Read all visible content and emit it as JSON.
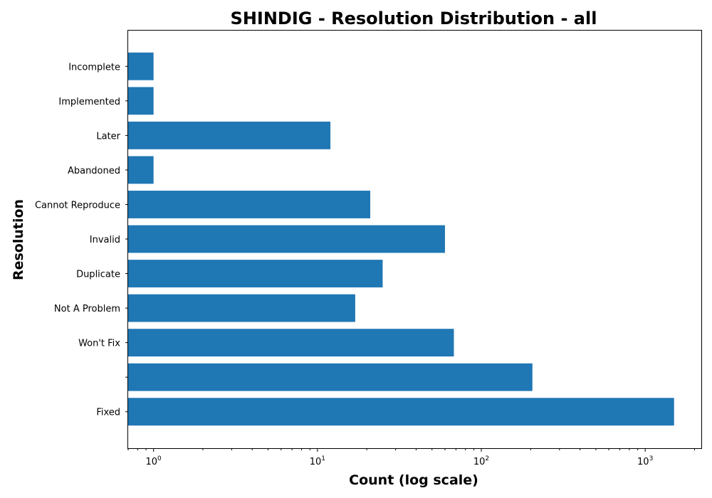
{
  "chart_data": {
    "type": "bar",
    "orientation": "horizontal",
    "title": "SHINDIG - Resolution Distribution - all",
    "xlabel": "Count (log scale)",
    "ylabel": "Resolution",
    "xscale": "log",
    "xlim": [
      0.7,
      2200
    ],
    "categories": [
      "Fixed",
      "",
      "Won't Fix",
      "Not A Problem",
      "Duplicate",
      "Invalid",
      "Cannot Reproduce",
      "Abandoned",
      "Later",
      "Implemented",
      "Incomplete"
    ],
    "values": [
      1500,
      205,
      68,
      17,
      25,
      60,
      21,
      1,
      12,
      1,
      1
    ],
    "bar_color": "#1f77b4",
    "x_ticks": [
      {
        "value": 1,
        "base": "10",
        "exp": "0"
      },
      {
        "value": 10,
        "base": "10",
        "exp": "1"
      },
      {
        "value": 100,
        "base": "10",
        "exp": "2"
      },
      {
        "value": 1000,
        "base": "10",
        "exp": "3"
      }
    ],
    "grid": false,
    "legend": "none"
  }
}
